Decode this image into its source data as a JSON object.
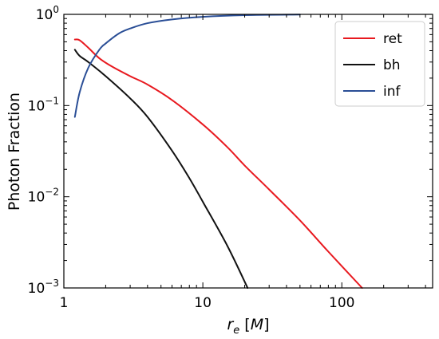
{
  "chart_data": {
    "type": "line",
    "title": "",
    "xlabel": "r_e  [M]",
    "ylabel": "Photon  Fraction",
    "xscale": "log",
    "yscale": "log",
    "xlim": [
      1,
      450
    ],
    "ylim": [
      0.001,
      1
    ],
    "x_ticks": [
      {
        "value": 1,
        "label": "1"
      },
      {
        "value": 10,
        "label": "10"
      },
      {
        "value": 100,
        "label": "100"
      }
    ],
    "y_ticks": [
      {
        "value": 0.001,
        "base": "10",
        "exp": "−3"
      },
      {
        "value": 0.01,
        "base": "10",
        "exp": "−2"
      },
      {
        "value": 0.1,
        "base": "10",
        "exp": "−1"
      },
      {
        "value": 1,
        "base": "10",
        "exp": "0"
      }
    ],
    "grid": false,
    "legend_position": "top-right",
    "series": [
      {
        "name": "ret",
        "color": "#e8191f",
        "x": [
          1.2,
          1.3,
          1.5,
          1.8,
          2.2,
          3.0,
          4.0,
          6.0,
          10,
          15,
          20,
          30,
          50,
          80,
          140
        ],
        "y": [
          0.53,
          0.52,
          0.43,
          0.33,
          0.27,
          0.21,
          0.17,
          0.115,
          0.062,
          0.035,
          0.022,
          0.012,
          0.0055,
          0.0025,
          0.001
        ]
      },
      {
        "name": "bh",
        "color": "#111111",
        "x": [
          1.2,
          1.3,
          1.5,
          2.0,
          3.0,
          4.0,
          6.0,
          8.0,
          10,
          15,
          21
        ],
        "y": [
          0.41,
          0.35,
          0.3,
          0.21,
          0.12,
          0.075,
          0.032,
          0.016,
          0.0088,
          0.0029,
          0.001
        ]
      },
      {
        "name": "inf",
        "color": "#2a4e96",
        "x": [
          1.2,
          1.3,
          1.5,
          1.8,
          2.0,
          2.5,
          3.0,
          4.0,
          6.0,
          10,
          20,
          50
        ],
        "y": [
          0.075,
          0.14,
          0.26,
          0.41,
          0.48,
          0.62,
          0.7,
          0.8,
          0.88,
          0.94,
          0.98,
          0.995
        ]
      }
    ]
  }
}
